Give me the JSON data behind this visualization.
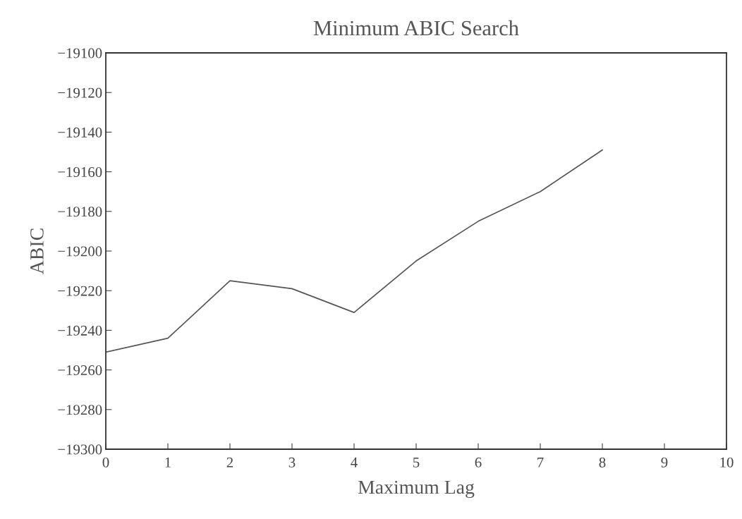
{
  "chart_data": {
    "type": "line",
    "title": "Minimum ABIC Search",
    "xlabel": "Maximum Lag",
    "ylabel": "ABIC",
    "x": [
      0,
      1,
      2,
      3,
      4,
      5,
      6,
      7,
      8
    ],
    "series": [
      {
        "color": "#555555",
        "values": [
          -19251,
          -19244,
          -19215,
          -19219,
          -19231,
          -19205,
          -19185,
          -19170,
          -19149
        ]
      }
    ],
    "xlim": [
      0,
      10
    ],
    "xticks": [
      0,
      1,
      2,
      3,
      4,
      5,
      6,
      7,
      8,
      9,
      10
    ],
    "ylim": [
      -19300,
      -19100
    ],
    "yticks": [
      -19300,
      -19280,
      -19260,
      -19240,
      -19220,
      -19200,
      -19180,
      -19160,
      -19140,
      -19120,
      -19100
    ],
    "grid": false,
    "legend": false,
    "marker": "none",
    "line_style": "solid"
  }
}
